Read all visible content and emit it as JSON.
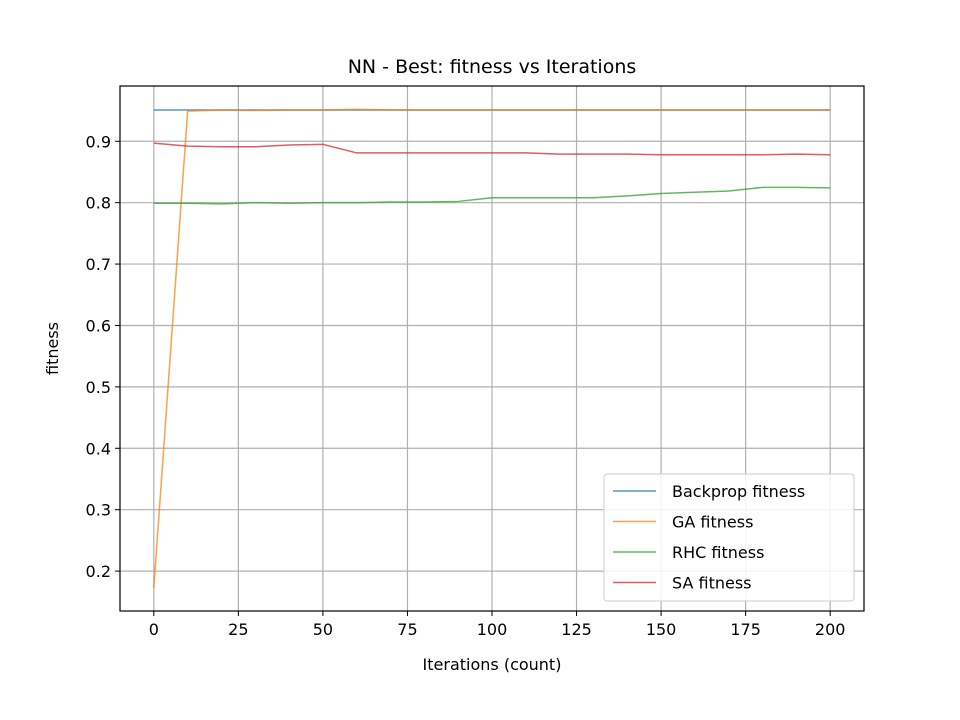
{
  "chart_data": {
    "type": "line",
    "title": "NN - Best: fitness vs Iterations",
    "xlabel": "Iterations (count)",
    "ylabel": "fitness",
    "xlim": [
      -10,
      210
    ],
    "ylim": [
      0.135,
      0.99
    ],
    "xticks": [
      0,
      25,
      50,
      75,
      100,
      125,
      150,
      175,
      200
    ],
    "yticks": [
      0.2,
      0.3,
      0.4,
      0.5,
      0.6,
      0.7,
      0.8,
      0.9
    ],
    "grid": true,
    "legend_position": "lower-right",
    "series": [
      {
        "name": "Backprop fitness",
        "color": "#1f77b4",
        "x": [
          0,
          10,
          200
        ],
        "y": [
          0.951,
          0.951,
          0.951
        ]
      },
      {
        "name": "GA fitness",
        "color": "#ff7f0e",
        "x": [
          0,
          10,
          20,
          30,
          40,
          50,
          60,
          70,
          80,
          90,
          100,
          110,
          120,
          130,
          140,
          150,
          160,
          170,
          180,
          190,
          200
        ],
        "y": [
          0.173,
          0.949,
          0.951,
          0.95,
          0.951,
          0.951,
          0.952,
          0.951,
          0.951,
          0.951,
          0.951,
          0.951,
          0.951,
          0.951,
          0.951,
          0.951,
          0.951,
          0.951,
          0.951,
          0.951,
          0.951
        ]
      },
      {
        "name": "RHC fitness",
        "color": "#2ca02c",
        "x": [
          0,
          10,
          20,
          30,
          40,
          50,
          60,
          70,
          80,
          90,
          100,
          110,
          120,
          130,
          140,
          150,
          160,
          170,
          180,
          190,
          200
        ],
        "y": [
          0.799,
          0.799,
          0.798,
          0.8,
          0.799,
          0.8,
          0.8,
          0.801,
          0.801,
          0.802,
          0.808,
          0.808,
          0.808,
          0.808,
          0.811,
          0.815,
          0.817,
          0.819,
          0.825,
          0.825,
          0.824
        ]
      },
      {
        "name": "SA fitness",
        "color": "#d62728",
        "x": [
          0,
          10,
          20,
          30,
          40,
          50,
          60,
          70,
          80,
          90,
          100,
          110,
          120,
          130,
          140,
          150,
          160,
          170,
          180,
          190,
          200
        ],
        "y": [
          0.897,
          0.892,
          0.891,
          0.891,
          0.894,
          0.895,
          0.881,
          0.881,
          0.881,
          0.881,
          0.881,
          0.881,
          0.879,
          0.879,
          0.879,
          0.878,
          0.878,
          0.878,
          0.878,
          0.879,
          0.878
        ]
      }
    ]
  }
}
